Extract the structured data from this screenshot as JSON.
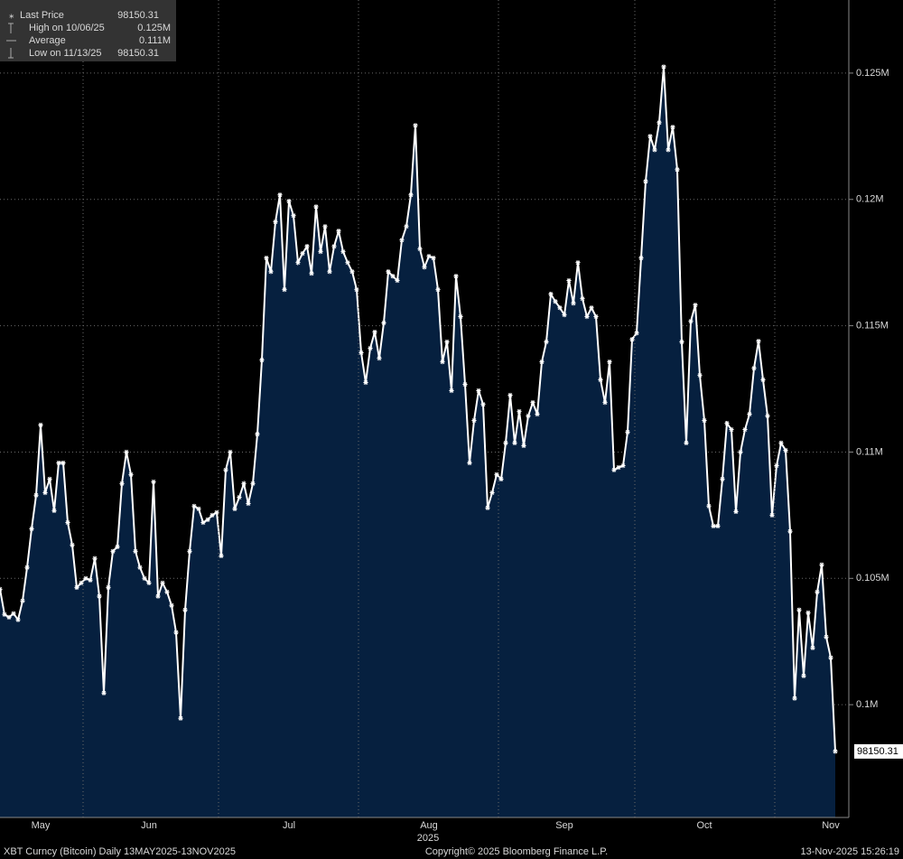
{
  "chart_data": {
    "type": "area",
    "series": [
      {
        "name": "Last Price",
        "color": "#ffffff",
        "fill": "#06203f",
        "values": [
          104570,
          103570,
          103460,
          103610,
          103360,
          104110,
          105430,
          106960,
          108290,
          111070,
          108390,
          108930,
          107680,
          109570,
          109570,
          107210,
          106320,
          104640,
          104820,
          105000,
          104930,
          105790,
          104290,
          100460,
          104640,
          106070,
          106250,
          108750,
          110000,
          109110,
          106070,
          105430,
          105000,
          104820,
          108820,
          104290,
          104820,
          104460,
          103930,
          102860,
          99460,
          103750,
          106070,
          107860,
          107750,
          107210,
          107320,
          107500,
          107610,
          105890,
          109290,
          110000,
          107750,
          108210,
          108750,
          107960,
          108750,
          110710,
          113640,
          117680,
          117140,
          119110,
          120180,
          116430,
          119930,
          119360,
          117500,
          117860,
          118140,
          117070,
          119710,
          117930,
          118930,
          117140,
          118140,
          118750,
          117930,
          117500,
          117140,
          116430,
          113930,
          112750,
          114110,
          114750,
          113710,
          115110,
          117140,
          116960,
          116790,
          118390,
          118930,
          120180,
          122930,
          118040,
          117320,
          117750,
          117680,
          116430,
          113570,
          114360,
          112430,
          116960,
          115360,
          112680,
          109570,
          111250,
          112430,
          111890,
          107790,
          108390,
          109110,
          108930,
          110360,
          112250,
          110360,
          111610,
          110250,
          111430,
          111960,
          111500,
          113570,
          114360,
          116250,
          115960,
          115710,
          115430,
          116790,
          115890,
          117500,
          116070,
          115360,
          115710,
          115360,
          112860,
          111960,
          113570,
          109290,
          109390,
          109460,
          110790,
          114460,
          114710,
          117680,
          120710,
          122500,
          121960,
          123040,
          125250,
          121960,
          122860,
          121180,
          114360,
          110360,
          115180,
          115820,
          113040,
          111250,
          107860,
          107070,
          107070,
          108930,
          111140,
          110890,
          107640,
          110000,
          110890,
          111500,
          113320,
          114390,
          112860,
          111430,
          107500,
          109460,
          110360,
          110070,
          106860,
          100250,
          103750,
          101140,
          103640,
          102250,
          104460,
          105540,
          102680,
          101860,
          98150.31
        ]
      }
    ],
    "categories": [
      null,
      null,
      null,
      null,
      null,
      null,
      null,
      null,
      null,
      "May",
      null,
      null,
      null,
      null,
      null,
      null,
      null,
      null,
      null,
      null,
      null,
      null,
      null,
      null,
      null,
      null,
      null,
      null,
      null,
      null,
      null,
      null,
      null,
      "Jun",
      null,
      null,
      null,
      null,
      null,
      null,
      null,
      null,
      null,
      null,
      null,
      null,
      null,
      null,
      null,
      null,
      null,
      null,
      null,
      null,
      null,
      null,
      null,
      null,
      null,
      null,
      null,
      null,
      null,
      null,
      "Jul",
      null,
      null,
      null,
      null,
      null,
      null,
      null,
      null,
      null,
      null,
      null,
      null,
      null,
      null,
      null,
      null,
      null,
      null,
      null,
      null,
      null,
      null,
      null,
      null,
      null,
      null,
      null,
      null,
      null,
      null,
      "Aug",
      null,
      null,
      null,
      null,
      null,
      null,
      null,
      null,
      null,
      null,
      null,
      null,
      null,
      null,
      null,
      null,
      null,
      null,
      null,
      null,
      null,
      null,
      null,
      null,
      null,
      null,
      null,
      null,
      null,
      "Sep",
      null,
      null,
      null,
      null,
      null,
      null,
      null,
      null,
      null,
      null,
      null,
      null,
      null,
      null,
      null,
      null,
      null,
      null,
      null,
      null,
      null,
      null,
      null,
      null,
      null,
      null,
      null,
      null,
      null,
      null,
      "Oct",
      null,
      null,
      null,
      null,
      null,
      null,
      null,
      null,
      null,
      null,
      null,
      null,
      null,
      null,
      null,
      null,
      null,
      null,
      null,
      null,
      null,
      null,
      null,
      null,
      null,
      null,
      null,
      "Nov",
      null
    ],
    "x_year_label": "2025",
    "ylim": [
      95536,
      127893
    ],
    "yticks": [
      {
        "value": 100000,
        "label": "0.1M"
      },
      {
        "value": 105000,
        "label": "0.105M"
      },
      {
        "value": 110000,
        "label": "0.11M"
      },
      {
        "value": 115000,
        "label": "0.115M"
      },
      {
        "value": 120000,
        "label": "0.12M"
      },
      {
        "value": 125000,
        "label": "0.125M"
      }
    ],
    "grid": true,
    "legend": [
      {
        "label": "Last Price",
        "value": "98150.31"
      },
      {
        "label": "High on 10/06/25",
        "value": "0.125M"
      },
      {
        "label": "Average",
        "value": "0.111M"
      },
      {
        "label": "Low on 11/13/25",
        "value": "98150.31"
      }
    ],
    "footer": {
      "left": "XBT Curncy (Bitcoin) Daily 13MAY2025-13NOV2025",
      "center": "Copyright© 2025 Bloomberg Finance L.P.",
      "right": "13-Nov-2025 15:26:19"
    }
  }
}
